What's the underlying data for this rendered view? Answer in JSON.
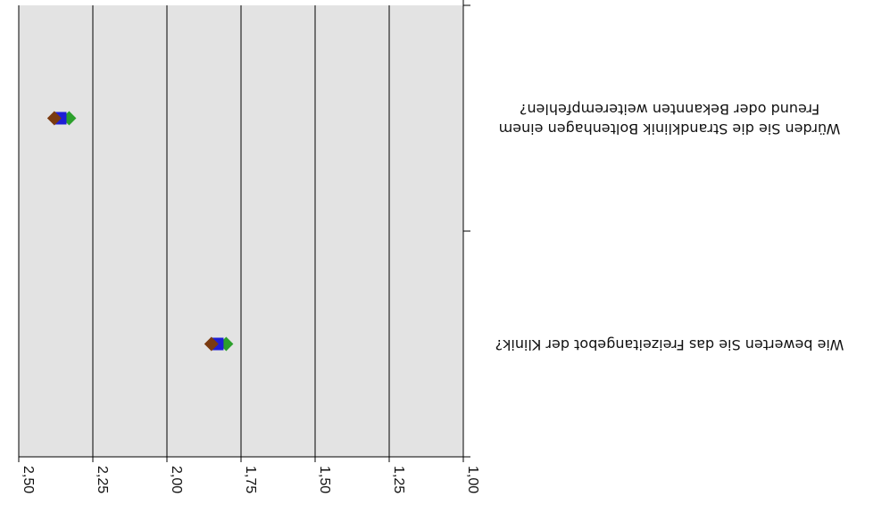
{
  "chart_data": {
    "type": "scatter",
    "orientation": "rotated-180",
    "categories": [
      [
        "Würden Sie die Strandklinik Boltenhagen einem",
        "Freund oder Bekannten weiterempfehlen?"
      ],
      [
        "Wie bewerten Sie das Freizeitangebot der Klinik?"
      ]
    ],
    "xlim": [
      1.0,
      2.5
    ],
    "x_ticks": [
      "1,00",
      "1,25",
      "1,50",
      "1,75",
      "2,00",
      "2,25",
      "2,50"
    ],
    "tick_values": [
      1.0,
      1.25,
      1.5,
      1.75,
      2.0,
      2.25,
      2.5
    ],
    "grid": true,
    "series": [
      {
        "color": "#2ca02c",
        "marker": "diamond",
        "values": [
          2.33,
          1.8
        ]
      },
      {
        "color": "#1f1fd6",
        "marker": "square",
        "values": [
          2.36,
          1.83
        ]
      },
      {
        "color": "#7a3a10",
        "marker": "diamond",
        "values": [
          2.38,
          1.85
        ]
      }
    ],
    "colors": {
      "plot_bg": "#e3e3e3",
      "grid": "#000000"
    }
  }
}
